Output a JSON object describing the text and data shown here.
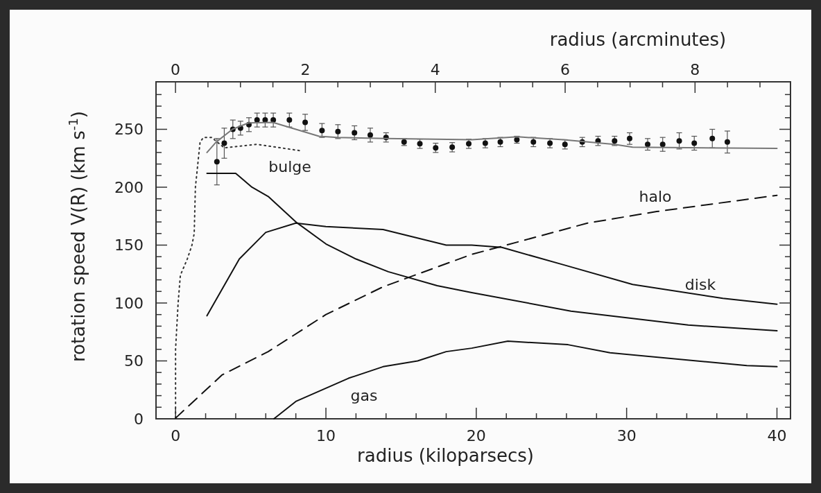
{
  "chart_data": {
    "type": "line",
    "xlabel": "radius (kiloparsecs)",
    "x2label": "radius (arcminutes)",
    "ylabel": "rotation speed V(R) (km s$^{-1}$)",
    "xlim": [
      -1.3,
      40.9
    ],
    "ylim": [
      0,
      291
    ],
    "x2lim": [
      -0.3,
      9.47
    ],
    "xticks": [
      0,
      {
        "value": 2,
        "label": null
      },
      {
        "value": 4,
        "label": null
      },
      {
        "value": 6,
        "label": null
      },
      {
        "value": 8,
        "label": null
      },
      10,
      {
        "value": 12,
        "label": null
      },
      {
        "value": 14,
        "label": null
      },
      {
        "value": 16,
        "label": null
      },
      {
        "value": 18,
        "label": null
      },
      20,
      {
        "value": 22,
        "label": null
      },
      {
        "value": 24,
        "label": null
      },
      {
        "value": 26,
        "label": null
      },
      {
        "value": 28,
        "label": null
      },
      30,
      {
        "value": 32,
        "label": null
      },
      {
        "value": 34,
        "label": null
      },
      {
        "value": 36,
        "label": null
      },
      {
        "value": 38,
        "label": null
      },
      40
    ],
    "x2ticks": [
      0,
      {
        "value": 0.5,
        "label": null
      },
      {
        "value": 1,
        "label": null
      },
      {
        "value": 1.5,
        "label": null
      },
      2,
      {
        "value": 2.5,
        "label": null
      },
      {
        "value": 3,
        "label": null
      },
      {
        "value": 3.5,
        "label": null
      },
      4,
      {
        "value": 4.5,
        "label": null
      },
      {
        "value": 5,
        "label": null
      },
      {
        "value": 5.5,
        "label": null
      },
      6,
      {
        "value": 6.5,
        "label": null
      },
      {
        "value": 7,
        "label": null
      },
      {
        "value": 7.5,
        "label": null
      },
      8,
      {
        "value": 8.5,
        "label": null
      },
      {
        "value": 9,
        "label": null
      }
    ],
    "yticks": [
      0,
      {
        "value": 10,
        "label": null
      },
      {
        "value": 20,
        "label": null
      },
      {
        "value": 30,
        "label": null
      },
      {
        "value": 40,
        "label": null
      },
      50,
      {
        "value": 60,
        "label": null
      },
      {
        "value": 70,
        "label": null
      },
      {
        "value": 80,
        "label": null
      },
      {
        "value": 90,
        "label": null
      },
      100,
      {
        "value": 110,
        "label": null
      },
      {
        "value": 120,
        "label": null
      },
      {
        "value": 130,
        "label": null
      },
      {
        "value": 140,
        "label": null
      },
      150,
      {
        "value": 160,
        "label": null
      },
      {
        "value": 170,
        "label": null
      },
      {
        "value": 180,
        "label": null
      },
      {
        "value": 190,
        "label": null
      },
      200,
      {
        "value": 210,
        "label": null
      },
      {
        "value": 220,
        "label": null
      },
      {
        "value": 230,
        "label": null
      },
      {
        "value": 240,
        "label": null
      },
      250,
      {
        "value": 260,
        "label": null
      },
      {
        "value": 270,
        "label": null
      },
      {
        "value": 280,
        "label": null
      }
    ],
    "grid": false,
    "series": [
      {
        "type": "scatter",
        "marker": "circle",
        "color": "#111111",
        "x": [
          2.75,
          3.24,
          3.81,
          4.32,
          4.88,
          5.42,
          5.96,
          6.5,
          7.57,
          8.62,
          9.74,
          10.8,
          11.9,
          12.95,
          14.0,
          15.2,
          16.25,
          17.3,
          18.4,
          19.5,
          20.6,
          21.6,
          22.7,
          23.8,
          24.9,
          25.9,
          27.05,
          28.1,
          29.2,
          30.2,
          31.4,
          32.4,
          33.5,
          34.5,
          35.7,
          36.7
        ],
        "values": [
          222,
          238,
          250,
          251,
          254,
          258,
          258,
          258,
          258,
          256,
          249,
          248,
          247,
          245,
          243,
          239,
          237.5,
          234,
          234.5,
          237.5,
          238,
          239,
          241,
          239,
          238,
          237,
          239,
          240,
          240,
          242,
          237,
          237,
          240,
          238,
          242,
          239
        ],
        "errors": [
          20,
          13,
          8,
          6,
          6,
          6,
          6,
          6,
          6,
          7,
          6,
          6,
          6,
          6,
          4,
          3,
          4,
          4,
          4,
          4,
          4,
          4,
          3,
          4,
          4,
          4,
          4,
          4,
          4,
          5,
          5,
          6,
          7,
          6,
          8,
          9.5
        ]
      },
      {
        "marker": "none",
        "line_style": "solid",
        "color": "#777777",
        "x": [
          2.09,
          2.7,
          3.78,
          4.85,
          6.47,
          9.54,
          10.77,
          14.0,
          19.7,
          22.75,
          25.8,
          29.2,
          30.4,
          40.0
        ],
        "values": [
          230,
          239,
          250,
          255.5,
          256,
          244,
          243,
          242,
          241,
          243.5,
          241,
          237,
          234.5,
          233.5
        ]
      },
      {
        "marker": "none",
        "line_style": "dotted",
        "color": "#333333",
        "x": [
          0,
          0,
          0.17,
          0.32,
          0.78,
          1.09,
          1.24,
          1.32,
          1.63,
          1.86,
          2.4,
          3.24,
          5.4,
          8.3
        ],
        "values": [
          0.6,
          60,
          100,
          124,
          138,
          150,
          160,
          200,
          239,
          243,
          243,
          234,
          237,
          231.5
        ]
      },
      {
        "name": "bulge",
        "marker": "none",
        "line_style": "solid",
        "color": "#111111",
        "x": [
          2.09,
          4.0,
          5.08,
          6.16,
          8.0,
          10.0,
          12.0,
          14.15,
          17.4,
          19.7,
          26.3,
          34.1,
          40.0
        ],
        "values": [
          212,
          212,
          200,
          192,
          170,
          151,
          138,
          127,
          115,
          109,
          93,
          81,
          76
        ]
      },
      {
        "name": "disk",
        "marker": "none",
        "line_style": "solid",
        "color": "#111111",
        "x": [
          2.09,
          4.24,
          6.0,
          8.0,
          10.0,
          13.8,
          18.0,
          19.7,
          21.7,
          25.8,
          30.4,
          36.4,
          40.0
        ],
        "values": [
          89,
          138,
          161,
          169,
          166,
          163.5,
          150,
          150,
          148,
          133,
          116,
          104,
          99
        ]
      },
      {
        "name": "halo",
        "marker": "none",
        "line_style": "dashed",
        "color": "#111111",
        "x": [
          0,
          3.1,
          6.16,
          10.0,
          13.8,
          19.7,
          22.0,
          27.4,
          32.0,
          40.0
        ],
        "values": [
          0.6,
          38,
          58,
          90,
          114,
          142,
          150,
          169,
          179,
          193
        ]
      },
      {
        "name": "gas",
        "marker": "none",
        "line_style": "solid",
        "color": "#111111",
        "x": [
          6.54,
          8.0,
          11.5,
          13.8,
          16.1,
          18.0,
          19.7,
          22.1,
          26.1,
          28.9,
          38.0,
          40.0
        ],
        "values": [
          0,
          15,
          35,
          45,
          50,
          58,
          61,
          67,
          64,
          57,
          46,
          45
        ]
      }
    ]
  }
}
